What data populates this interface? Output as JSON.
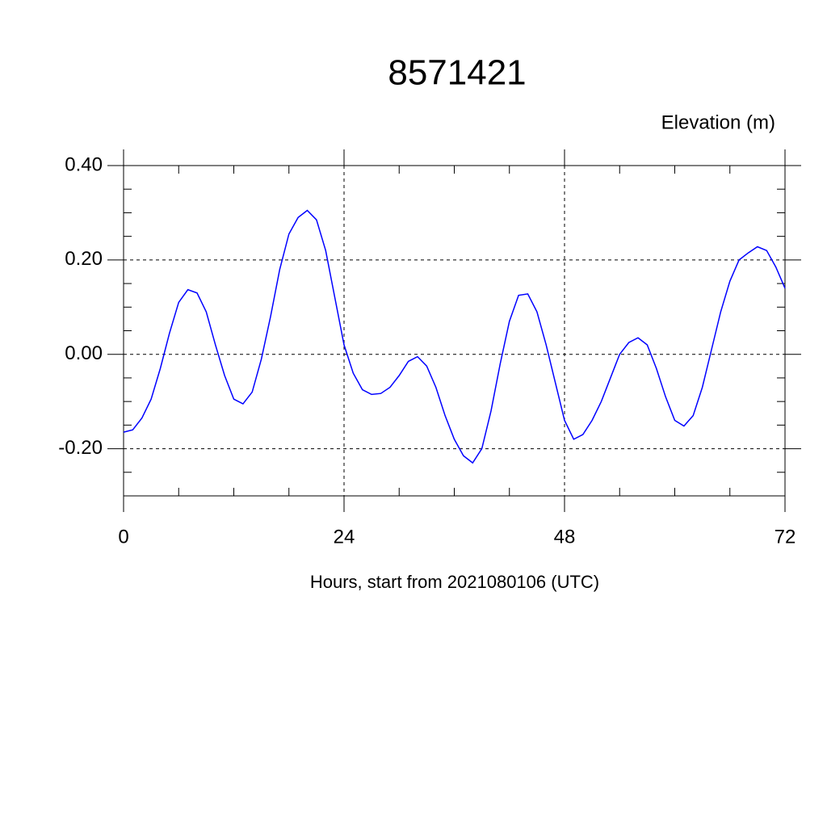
{
  "chart_data": {
    "type": "line",
    "title": "8571421",
    "y_label": "Elevation (m)",
    "x_label": "Hours, start from 2021080106 (UTC)",
    "x": [
      0,
      1,
      2,
      3,
      4,
      5,
      6,
      7,
      8,
      9,
      10,
      11,
      12,
      13,
      14,
      15,
      16,
      17,
      18,
      19,
      20,
      21,
      22,
      23,
      24,
      25,
      26,
      27,
      28,
      29,
      30,
      31,
      32,
      33,
      34,
      35,
      36,
      37,
      38,
      39,
      40,
      41,
      42,
      43,
      44,
      45,
      46,
      47,
      48,
      49,
      50,
      51,
      52,
      53,
      54,
      55,
      56,
      57,
      58,
      59,
      60,
      61,
      62,
      63,
      64,
      65,
      66,
      67,
      68,
      69,
      70,
      71,
      72
    ],
    "series": [
      {
        "color": "#0000ff",
        "values": [
          -0.165,
          -0.16,
          -0.135,
          -0.095,
          -0.03,
          0.045,
          0.11,
          0.137,
          0.13,
          0.09,
          0.02,
          -0.045,
          -0.095,
          -0.105,
          -0.08,
          -0.01,
          0.08,
          0.18,
          0.255,
          0.29,
          0.305,
          0.285,
          0.22,
          0.12,
          0.02,
          -0.04,
          -0.075,
          -0.085,
          -0.083,
          -0.07,
          -0.045,
          -0.015,
          -0.005,
          -0.025,
          -0.07,
          -0.13,
          -0.18,
          -0.215,
          -0.23,
          -0.2,
          -0.12,
          -0.02,
          0.07,
          0.125,
          0.128,
          0.09,
          0.02,
          -0.06,
          -0.14,
          -0.18,
          -0.17,
          -0.14,
          -0.1,
          -0.05,
          0.0,
          0.025,
          0.035,
          0.02,
          -0.03,
          -0.09,
          -0.14,
          -0.152,
          -0.13,
          -0.07,
          0.01,
          0.09,
          0.155,
          0.2,
          0.215,
          0.228,
          0.22,
          0.185,
          0.14
        ]
      }
    ],
    "xlim": [
      0,
      72
    ],
    "xticks": [
      0,
      24,
      48,
      72
    ],
    "xminorticks": [
      6,
      12,
      18,
      30,
      36,
      42,
      54,
      60,
      66
    ],
    "ylim": [
      -0.3,
      0.4
    ],
    "yticks": [
      {
        "value": 0.4,
        "label": "0.40"
      },
      {
        "value": 0.2,
        "label": "0.20"
      },
      {
        "value": 0,
        "label": "0.00"
      },
      {
        "value": -0.2,
        "label": "-0.20"
      }
    ],
    "yminorticks": [
      -0.3,
      -0.25,
      -0.15,
      -0.1,
      -0.05,
      0.05,
      0.1,
      0.15,
      0.25,
      0.3,
      0.35
    ],
    "grid": true
  }
}
